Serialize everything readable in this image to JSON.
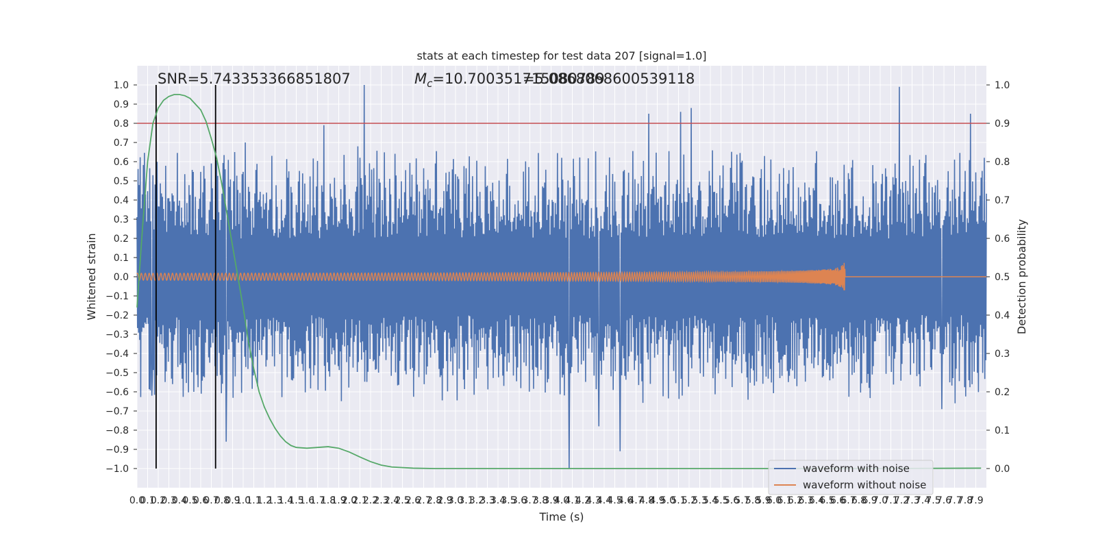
{
  "chart_data": {
    "type": "line",
    "title": "stats at each timestep for test data 207 [signal=1.0]",
    "xlabel": "Time (s)",
    "ylabel_left": "Whitened strain",
    "ylabel_right": "Detection probability",
    "xlim": [
      0.0,
      8.0
    ],
    "ylim_left": [
      -1.1,
      1.1
    ],
    "ylim_right": [
      -0.05,
      1.05
    ],
    "grid": true,
    "background": "#eaeaf2",
    "x_tick_labels": [
      "0.0",
      "0.1",
      "0.2",
      "0.3",
      "0.4",
      "0.5",
      "0.6",
      "0.7",
      "0.8",
      "0.9",
      "1.0",
      "1.1",
      "1.2",
      "1.3",
      "1.4",
      "1.5",
      "1.6",
      "1.7",
      "1.8",
      "1.9",
      "2.0",
      "2.1",
      "2.2",
      "2.3",
      "2.4",
      "2.5",
      "2.6",
      "2.7",
      "2.8",
      "2.9",
      "3.0",
      "3.1",
      "3.2",
      "3.3",
      "3.4",
      "3.5",
      "3.6",
      "3.7",
      "3.8",
      "3.9",
      "4.0",
      "4.1",
      "4.2",
      "4.3",
      "4.4",
      "4.5",
      "4.6",
      "4.7",
      "4.8",
      "4.9",
      "5.0",
      "5.1",
      "5.2",
      "5.3",
      "5.4",
      "5.5",
      "5.6",
      "5.7",
      "5.8",
      "5.9",
      "6.0",
      "6.1",
      "6.2",
      "6.3",
      "6.4",
      "6.5",
      "6.6",
      "6.7",
      "6.8",
      "6.9",
      "7.0",
      "7.1",
      "7.2",
      "7.3",
      "7.4",
      "7.5",
      "7.6",
      "7.7",
      "7.8",
      "7.9"
    ],
    "y_left_tick_labels": [
      "1.0",
      "0.9",
      "0.8",
      "0.7",
      "0.6",
      "0.5",
      "0.4",
      "0.3",
      "0.2",
      "0.1",
      "0.0",
      "−0.1",
      "−0.2",
      "−0.3",
      "−0.4",
      "−0.5",
      "−0.6",
      "−0.7",
      "−0.8",
      "−0.9",
      "−1.0"
    ],
    "y_right_tick_labels": [
      "1.0",
      "0.9",
      "0.8",
      "0.7",
      "0.6",
      "0.5",
      "0.4",
      "0.3",
      "0.2",
      "0.1",
      "0.0"
    ],
    "annotations": {
      "snr": "SNR=5.743353366851807",
      "mc_prefix": "M",
      "mc_sub": "c",
      "mc_value": "=10.700351715080789",
      "overlap": "=5.0868068600539118"
    },
    "threshold_left": 0.8,
    "signal_window": [
      0.18,
      0.74
    ],
    "signal_merger_time": 6.67,
    "noise_spikes": [
      {
        "x": 0.14,
        "y": -0.62
      },
      {
        "x": 0.84,
        "y": -0.86
      },
      {
        "x": 1.02,
        "y": 0.7
      },
      {
        "x": 1.76,
        "y": 0.79
      },
      {
        "x": 2.08,
        "y": 0.68
      },
      {
        "x": 2.14,
        "y": 1.0
      },
      {
        "x": 4.07,
        "y": -1.0
      },
      {
        "x": 4.35,
        "y": -0.78
      },
      {
        "x": 4.55,
        "y": -0.91
      },
      {
        "x": 4.82,
        "y": 0.85
      },
      {
        "x": 5.12,
        "y": 0.86
      },
      {
        "x": 5.22,
        "y": 0.88
      },
      {
        "x": 7.18,
        "y": 0.99
      },
      {
        "x": 7.85,
        "y": 0.85
      },
      {
        "x": 7.58,
        "y": -0.69
      }
    ],
    "series": [
      {
        "name": "waveform with noise",
        "color": "#4c72b0",
        "axis": "left",
        "noise_envelope": 0.2,
        "noise_spread": 0.42
      },
      {
        "name": "waveform without noise",
        "color": "#dd8452",
        "axis": "left",
        "peak_amplitude": 0.18
      },
      {
        "name": "",
        "color": "#55a868",
        "axis": "right",
        "x": [
          0.0,
          0.05,
          0.1,
          0.15,
          0.2,
          0.25,
          0.3,
          0.35,
          0.4,
          0.45,
          0.5,
          0.55,
          0.6,
          0.65,
          0.7,
          0.75,
          0.8,
          0.85,
          0.9,
          0.95,
          1.0,
          1.05,
          1.1,
          1.15,
          1.2,
          1.25,
          1.3,
          1.35,
          1.4,
          1.45,
          1.5,
          1.6,
          1.7,
          1.8,
          1.9,
          2.0,
          2.1,
          2.2,
          2.3,
          2.4,
          2.6,
          2.8,
          3.0,
          4.0,
          5.0,
          6.0,
          7.0,
          7.95
        ],
        "y": [
          0.42,
          0.62,
          0.8,
          0.9,
          0.94,
          0.96,
          0.97,
          0.975,
          0.975,
          0.972,
          0.965,
          0.95,
          0.935,
          0.905,
          0.86,
          0.81,
          0.74,
          0.66,
          0.58,
          0.5,
          0.42,
          0.33,
          0.26,
          0.2,
          0.16,
          0.13,
          0.105,
          0.085,
          0.07,
          0.06,
          0.055,
          0.053,
          0.055,
          0.057,
          0.053,
          0.043,
          0.03,
          0.018,
          0.009,
          0.004,
          0.001,
          0.0,
          0.0,
          0.0,
          0.0,
          0.0,
          0.0,
          0.001
        ]
      }
    ],
    "legend": {
      "placement": "lower right",
      "entries": [
        "waveform with noise",
        "waveform without noise"
      ]
    },
    "colors": {
      "threshold": "#c44e52",
      "vlines": "#000000",
      "grid": "#ffffff"
    }
  }
}
